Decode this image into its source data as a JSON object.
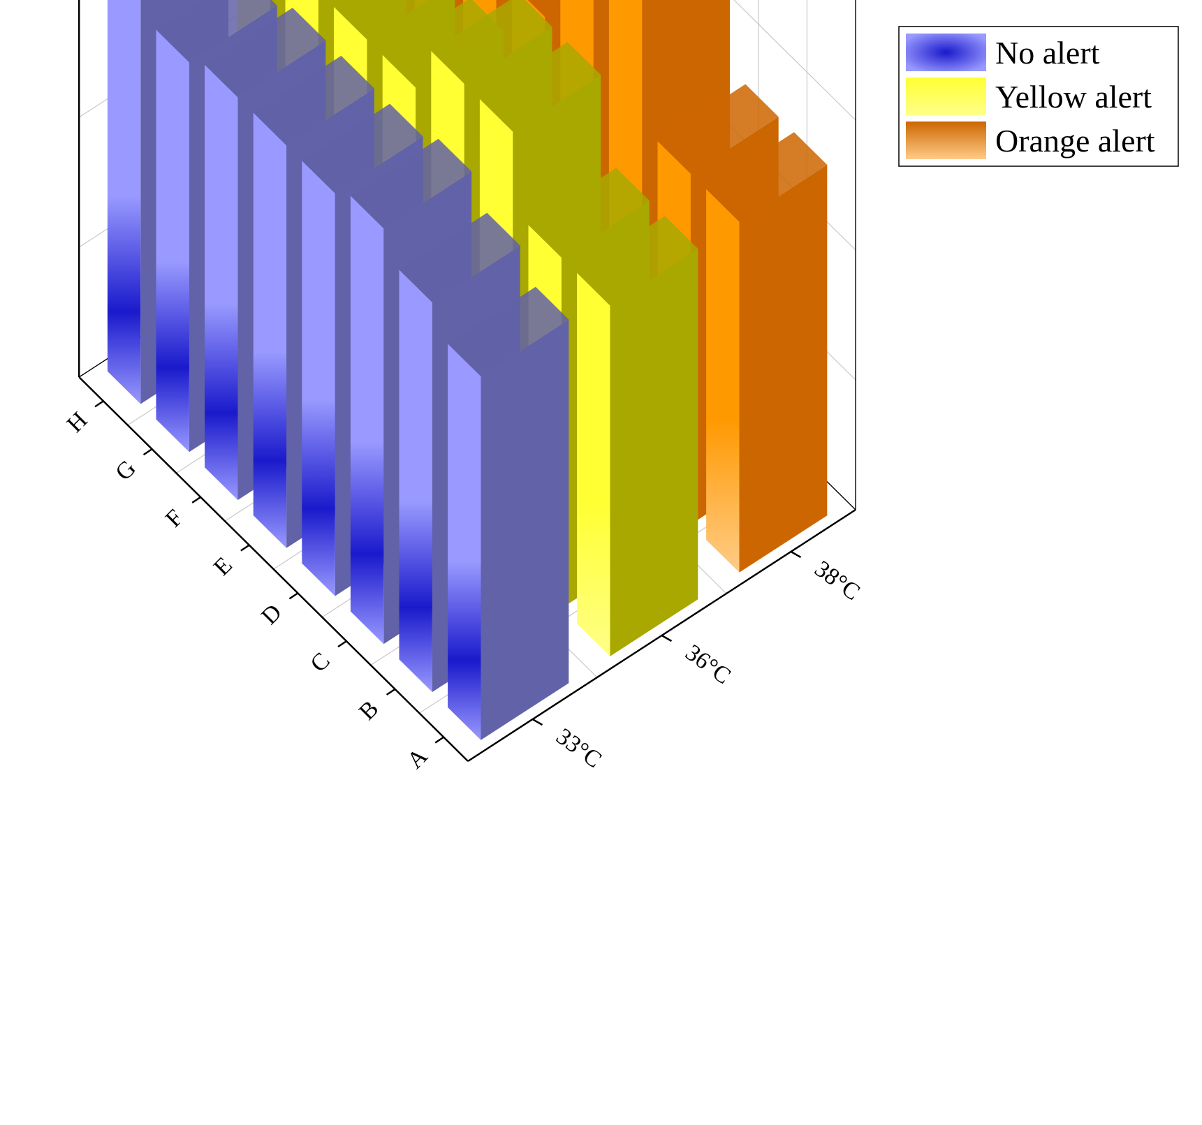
{
  "chart_data": {
    "type": "bar",
    "subtype": "3d-bar",
    "title": "",
    "xlabel": "",
    "ylabel": "",
    "zlabel": "",
    "categories": [
      "A",
      "B",
      "C",
      "D",
      "E",
      "F",
      "G",
      "H"
    ],
    "depth_categories": [
      "33°C",
      "36°C",
      "38°C"
    ],
    "z_tick_labels": [],
    "grid": true,
    "legend_position": "top-right",
    "series": [
      {
        "name": "No alert",
        "depth": "33°C",
        "values": [
          2.8,
          3.0,
          3.2,
          3.1,
          3.1,
          3.1,
          3.0,
          3.3
        ],
        "colors": [
          "#9999ff",
          "#1a1acc",
          "#6262a8"
        ]
      },
      {
        "name": "Yellow alert",
        "depth": "36°C",
        "values": [
          2.7,
          2.7,
          3.3,
          3.3,
          2.9,
          2.9,
          2.9,
          3.0
        ],
        "colors": [
          "#ffff33",
          "#ffff88",
          "#a8a800"
        ]
      },
      {
        "name": "Orange alert",
        "depth": "38°C",
        "values": [
          2.7,
          2.7,
          3.7,
          3.7,
          2.8,
          2.7,
          2.6,
          2.7
        ],
        "colors": [
          "#ff9900",
          "#ffcc88",
          "#cc6600"
        ]
      }
    ]
  }
}
